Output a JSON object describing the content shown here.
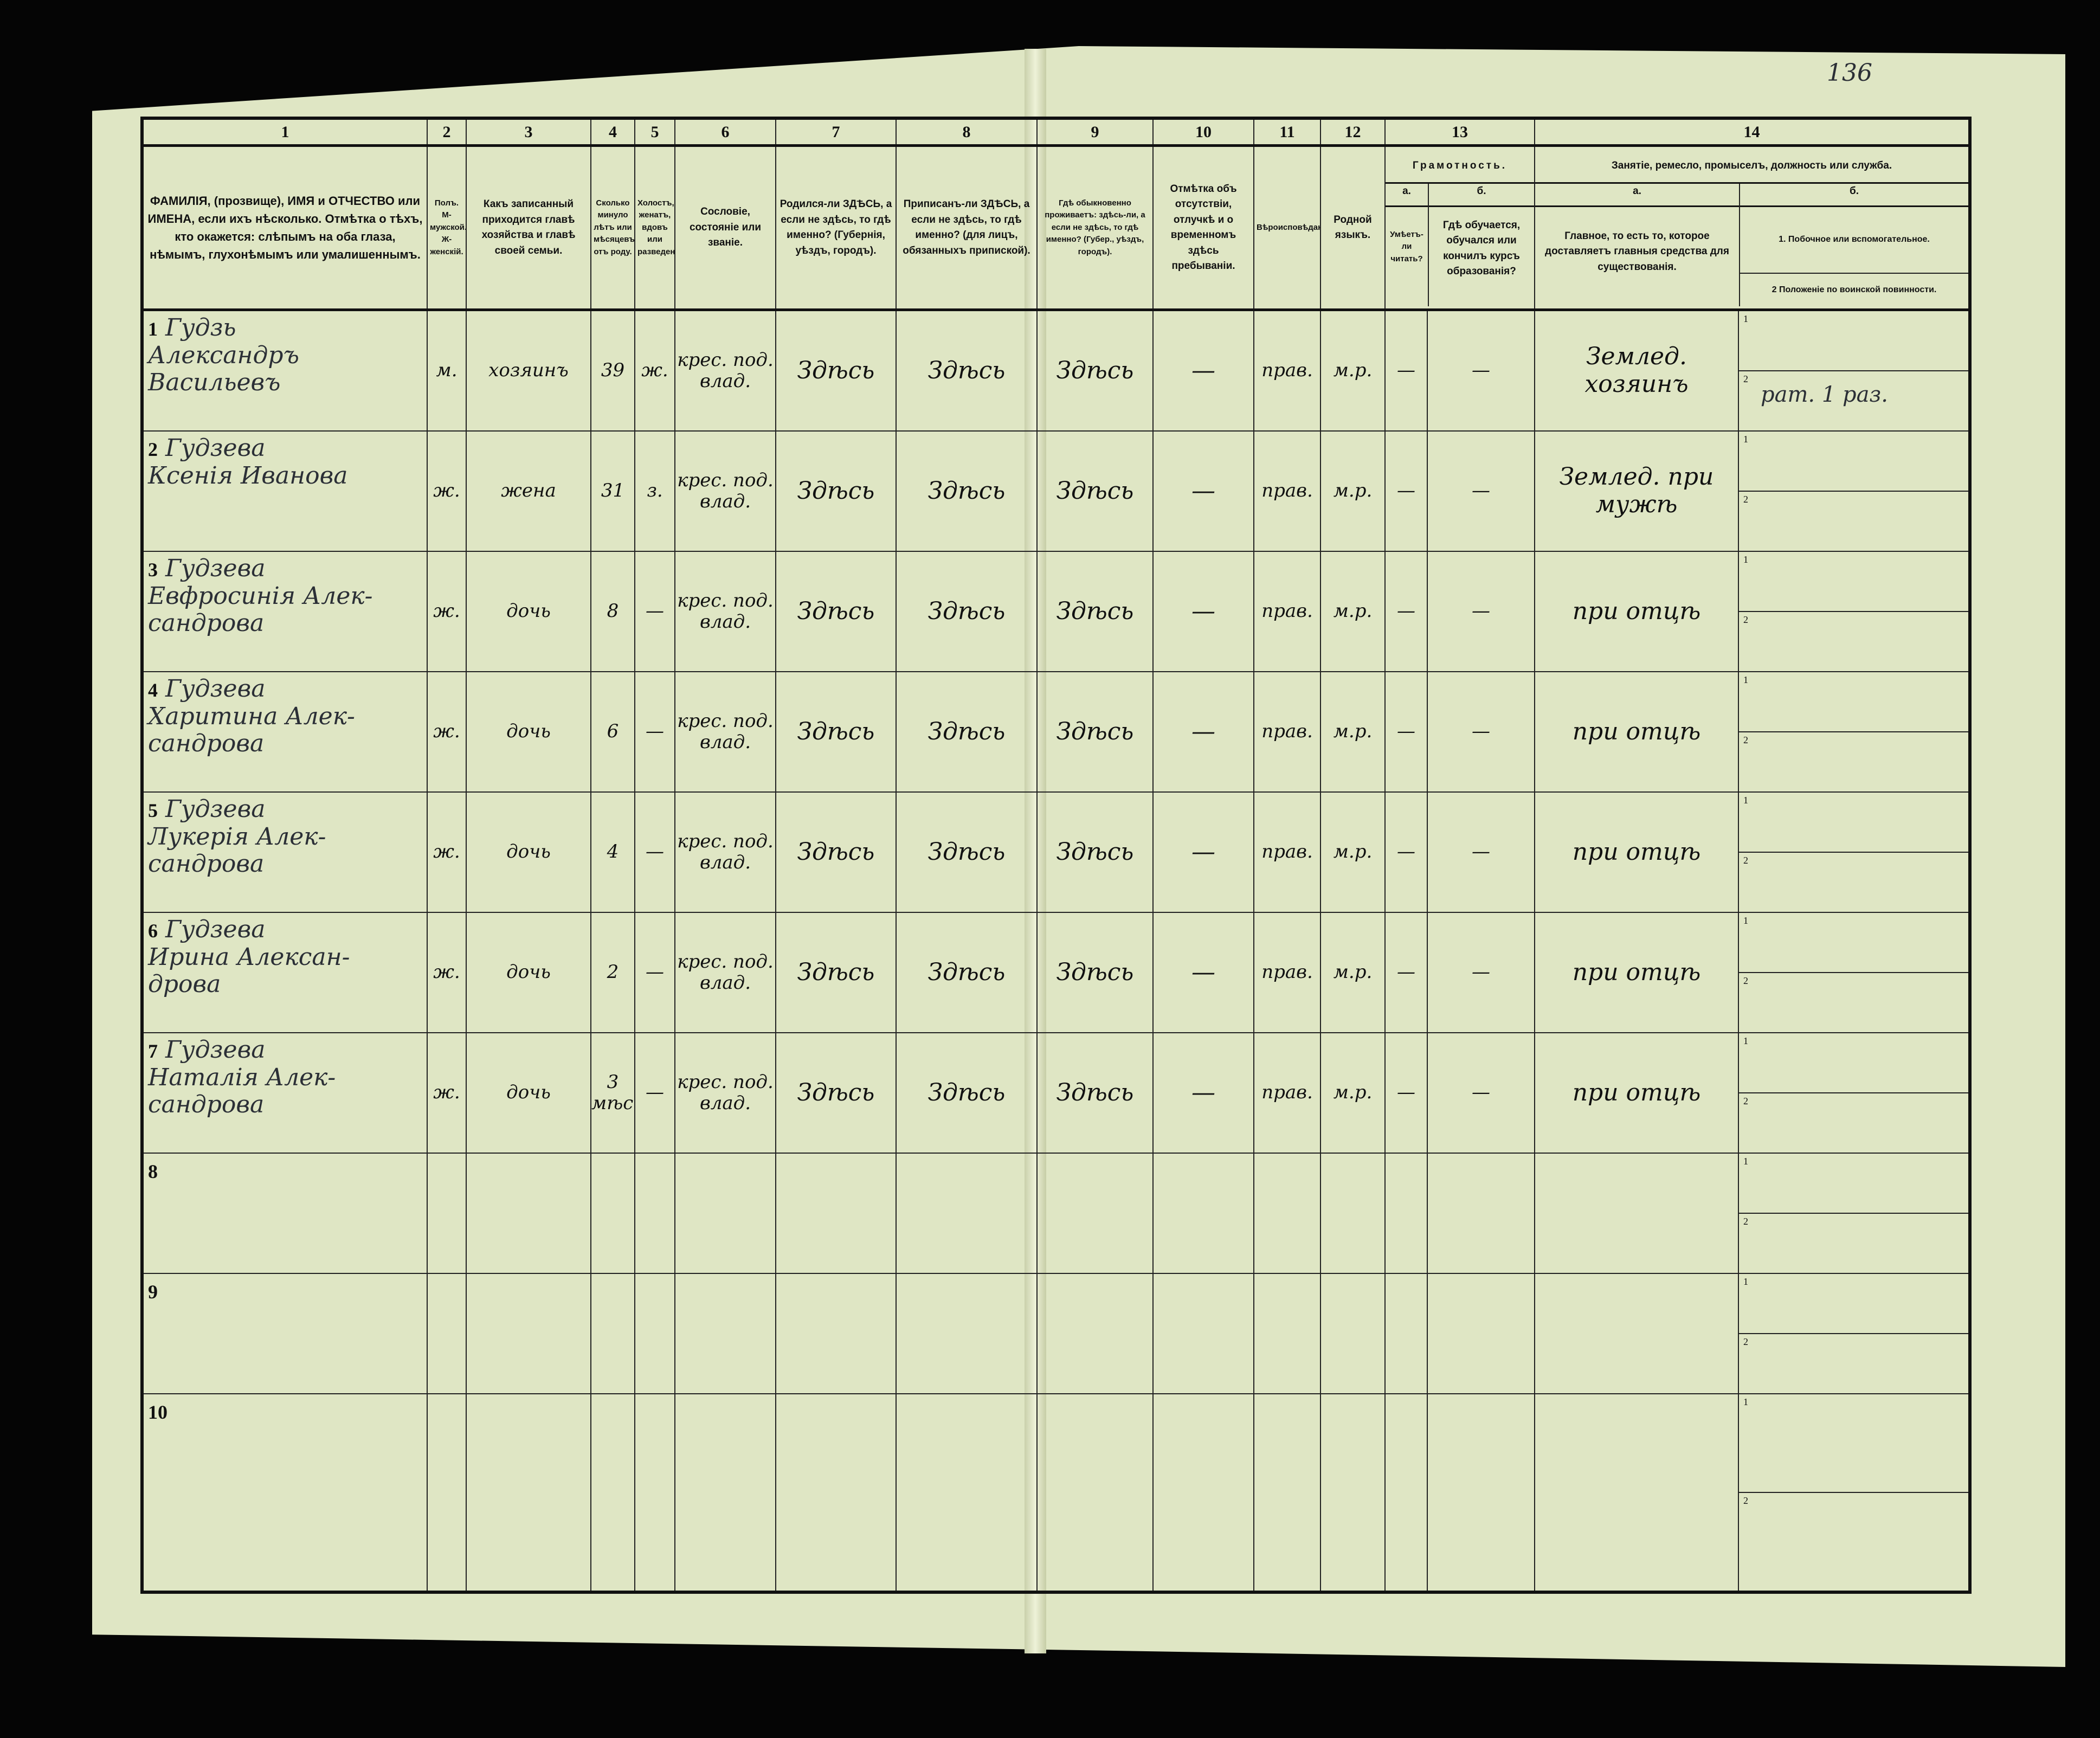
{
  "page_number": "136",
  "header": {
    "col_numbers": [
      "1",
      "2",
      "3",
      "4",
      "5",
      "6",
      "7",
      "8",
      "9",
      "10",
      "11",
      "12",
      "13",
      "14"
    ],
    "col1": "ФАМИЛІЯ, (прозвище), ИМЯ и ОТЧЕСТВО или ИМЕНА, если ихъ нѣсколько. Отмѣтка о тѣхъ, кто окажется: слѣпымъ на оба глаза, нѣмымъ, глухонѣмымъ или умалишеннымъ.",
    "col2": "Полъ. М-мужской. Ж-женскій.",
    "col3": "Какъ записанный приходится главѣ хозяйства и главѣ своей семьи.",
    "col4": "Сколько минуло лѣтъ или мѣсяцевъ отъ роду.",
    "col5": "Холостъ, женатъ, вдовъ или разведенъ.",
    "col6": "Сословіе, состояніе или званіе.",
    "col7": "Родился-ли ЗДѢСЬ, а если не здѣсь, то гдѣ именно? (Губернія, уѣздъ, городъ).",
    "col8": "Приписанъ-ли ЗДѢСЬ, а если не здѣсь, то гдѣ именно? (для лицъ, обязанныхъ припиской).",
    "col9": "Гдѣ обыкновенно проживаетъ: здѣсь-ли, а если не здѣсь, то гдѣ именно? (Губер., уѣздъ, городъ).",
    "col10": "Отмѣтка объ отсутствіи, отлучкѣ и о временномъ здѣсь пребываніи.",
    "col11": "Вѣроисповѣданіе.",
    "col12": "Родной языкъ.",
    "col13": "Грамотность.",
    "col13a_letter": "а.",
    "col13a": "Умѣетъ-ли читать?",
    "col13b_letter": "б.",
    "col13b": "Гдѣ обучается, обучался или кончилъ курсъ образованія?",
    "col14": "Занятіе, ремесло, промыселъ, должность или служба.",
    "col14a_letter": "а.",
    "col14a": "Главное, то есть то, которое доставляетъ главныя средства для существованія.",
    "col14b_letter": "б.",
    "col14b_1": "1. Побочное или вспомогательное.",
    "col14b_2": "2 Положеніе по воинской повинности."
  },
  "sub_labels": [
    "1",
    "2"
  ],
  "rows": [
    {
      "num": "1",
      "surname": "Гудзь",
      "name": "Александръ Васильевъ",
      "sex": "м.",
      "relation": "хозяинъ",
      "age": "39",
      "marital": "ж.",
      "estate": "крес. под. влад.",
      "born": "Здѣсь",
      "registered": "Здѣсь",
      "resides": "Здѣсь",
      "absence": "—",
      "religion": "прав.",
      "language": "м.р.",
      "can_read": "—",
      "school": "—",
      "occupation": "Землед. хозяинъ",
      "side": "",
      "military": "рат. 1 раз."
    },
    {
      "num": "2",
      "surname": "Гудзева",
      "name": "Ксенія Иванова",
      "sex": "ж.",
      "relation": "жена",
      "age": "31",
      "marital": "з.",
      "estate": "крес. под. влад.",
      "born": "Здѣсь",
      "registered": "Здѣсь",
      "resides": "Здѣсь",
      "absence": "—",
      "religion": "прав.",
      "language": "м.р.",
      "can_read": "—",
      "school": "—",
      "occupation": "Землед. при мужѣ",
      "side": "",
      "military": ""
    },
    {
      "num": "3",
      "surname": "Гудзева",
      "name": "Евфросинія Алек-сандрова",
      "sex": "ж.",
      "relation": "дочь",
      "age": "8",
      "marital": "—",
      "estate": "крес. под. влад.",
      "born": "Здѣсь",
      "registered": "Здѣсь",
      "resides": "Здѣсь",
      "absence": "—",
      "religion": "прав.",
      "language": "м.р.",
      "can_read": "—",
      "school": "—",
      "occupation": "при отцѣ",
      "side": "",
      "military": ""
    },
    {
      "num": "4",
      "surname": "Гудзева",
      "name": "Харитина Алек-сандрова",
      "sex": "ж.",
      "relation": "дочь",
      "age": "6",
      "marital": "—",
      "estate": "крес. под. влад.",
      "born": "Здѣсь",
      "registered": "Здѣсь",
      "resides": "Здѣсь",
      "absence": "—",
      "religion": "прав.",
      "language": "м.р.",
      "can_read": "—",
      "school": "—",
      "occupation": "при отцѣ",
      "side": "",
      "military": ""
    },
    {
      "num": "5",
      "surname": "Гудзева",
      "name": "Лукерія Алек-сандрова",
      "sex": "ж.",
      "relation": "дочь",
      "age": "4",
      "marital": "—",
      "estate": "крес. под. влад.",
      "born": "Здѣсь",
      "registered": "Здѣсь",
      "resides": "Здѣсь",
      "absence": "—",
      "religion": "прав.",
      "language": "м.р.",
      "can_read": "—",
      "school": "—",
      "occupation": "при отцѣ",
      "side": "",
      "military": ""
    },
    {
      "num": "6",
      "surname": "Гудзева",
      "name": "Ирина Алексан-дрова",
      "sex": "ж.",
      "relation": "дочь",
      "age": "2",
      "marital": "—",
      "estate": "крес. под. влад.",
      "born": "Здѣсь",
      "registered": "Здѣсь",
      "resides": "Здѣсь",
      "absence": "—",
      "religion": "прав.",
      "language": "м.р.",
      "can_read": "—",
      "school": "—",
      "occupation": "при отцѣ",
      "side": "",
      "military": ""
    },
    {
      "num": "7",
      "surname": "Гудзева",
      "name": "Наталія Алек-сандрова",
      "sex": "ж.",
      "relation": "дочь",
      "age": "3 мѣс.",
      "marital": "—",
      "estate": "крес. под. влад.",
      "born": "Здѣсь",
      "registered": "Здѣсь",
      "resides": "Здѣсь",
      "absence": "—",
      "religion": "прав.",
      "language": "м.р.",
      "can_read": "—",
      "school": "—",
      "occupation": "при отцѣ",
      "side": "",
      "military": ""
    },
    {
      "num": "8"
    },
    {
      "num": "9"
    },
    {
      "num": "10"
    }
  ]
}
